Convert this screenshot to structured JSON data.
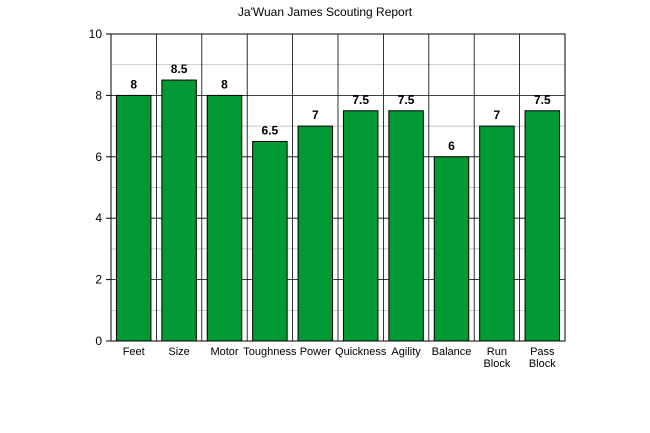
{
  "chart_data": {
    "type": "bar",
    "title": "Ja'Wuan James Scouting Report",
    "categories": [
      "Feet",
      "Size",
      "Motor",
      "Toughness",
      "Power",
      "Quickness",
      "Agility",
      "Balance",
      "Run Block",
      "Pass Block"
    ],
    "values": [
      8,
      8.5,
      8,
      6.5,
      7,
      7.5,
      7.5,
      6,
      7,
      7.5
    ],
    "data_labels": [
      "8",
      "8.5",
      "8",
      "6.5",
      "7",
      "7.5",
      "7.5",
      "6",
      "7",
      "7.5"
    ],
    "y_ticks": [
      "0",
      "2",
      "4",
      "6",
      "8",
      "10"
    ],
    "ylim": [
      0,
      10
    ],
    "grid": true,
    "bar_color": "#009933",
    "legend": "none"
  }
}
